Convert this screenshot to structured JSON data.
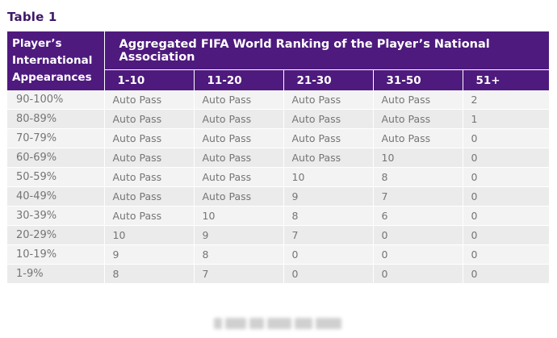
{
  "caption": "Table 1",
  "header": {
    "player_label": [
      "Player’s",
      "International",
      "Appearances"
    ],
    "aggregate_label": "Aggregated FIFA World Ranking of the Player’s National Association",
    "bands": [
      "1-10",
      "11-20",
      "21-30",
      "31-50",
      "51+"
    ]
  },
  "rows": [
    {
      "label": "90-100%",
      "cells": [
        "Auto Pass",
        "Auto Pass",
        "Auto Pass",
        "Auto Pass",
        "2"
      ]
    },
    {
      "label": "80-89%",
      "cells": [
        "Auto Pass",
        "Auto Pass",
        "Auto Pass",
        "Auto Pass",
        "1"
      ]
    },
    {
      "label": "70-79%",
      "cells": [
        "Auto Pass",
        "Auto Pass",
        "Auto Pass",
        "Auto Pass",
        "0"
      ]
    },
    {
      "label": "60-69%",
      "cells": [
        "Auto Pass",
        "Auto Pass",
        "Auto Pass",
        "10",
        "0"
      ]
    },
    {
      "label": "50-59%",
      "cells": [
        "Auto Pass",
        "Auto Pass",
        "10",
        "8",
        "0"
      ]
    },
    {
      "label": "40-49%",
      "cells": [
        "Auto Pass",
        "Auto Pass",
        "9",
        "7",
        "0"
      ]
    },
    {
      "label": "30-39%",
      "cells": [
        "Auto Pass",
        "10",
        "8",
        "6",
        "0"
      ]
    },
    {
      "label": "20-29%",
      "cells": [
        "10",
        "9",
        "7",
        "0",
        "0"
      ]
    },
    {
      "label": "10-19%",
      "cells": [
        "9",
        "8",
        "0",
        "0",
        "0"
      ]
    },
    {
      "label": "1-9%",
      "cells": [
        "8",
        "7",
        "0",
        "0",
        "0"
      ]
    }
  ],
  "colors": {
    "header_bg": "#4e1a7e",
    "caption": "#3d1968",
    "row_odd": "#f3f3f3",
    "row_even": "#ebebeb",
    "cell_text": "#757575"
  }
}
